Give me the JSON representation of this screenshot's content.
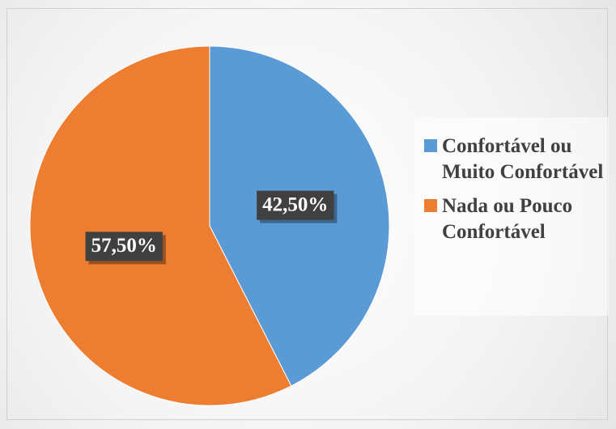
{
  "chart_data": {
    "type": "pie",
    "categories": [
      "Confortável ou Muito Confortável",
      "Nada ou Pouco Confortável"
    ],
    "values": [
      42.5,
      57.5
    ],
    "value_labels": [
      "42,50%",
      "57,50%"
    ],
    "colors": [
      "#5b9bd5",
      "#ed7d31"
    ],
    "legend": "right"
  }
}
